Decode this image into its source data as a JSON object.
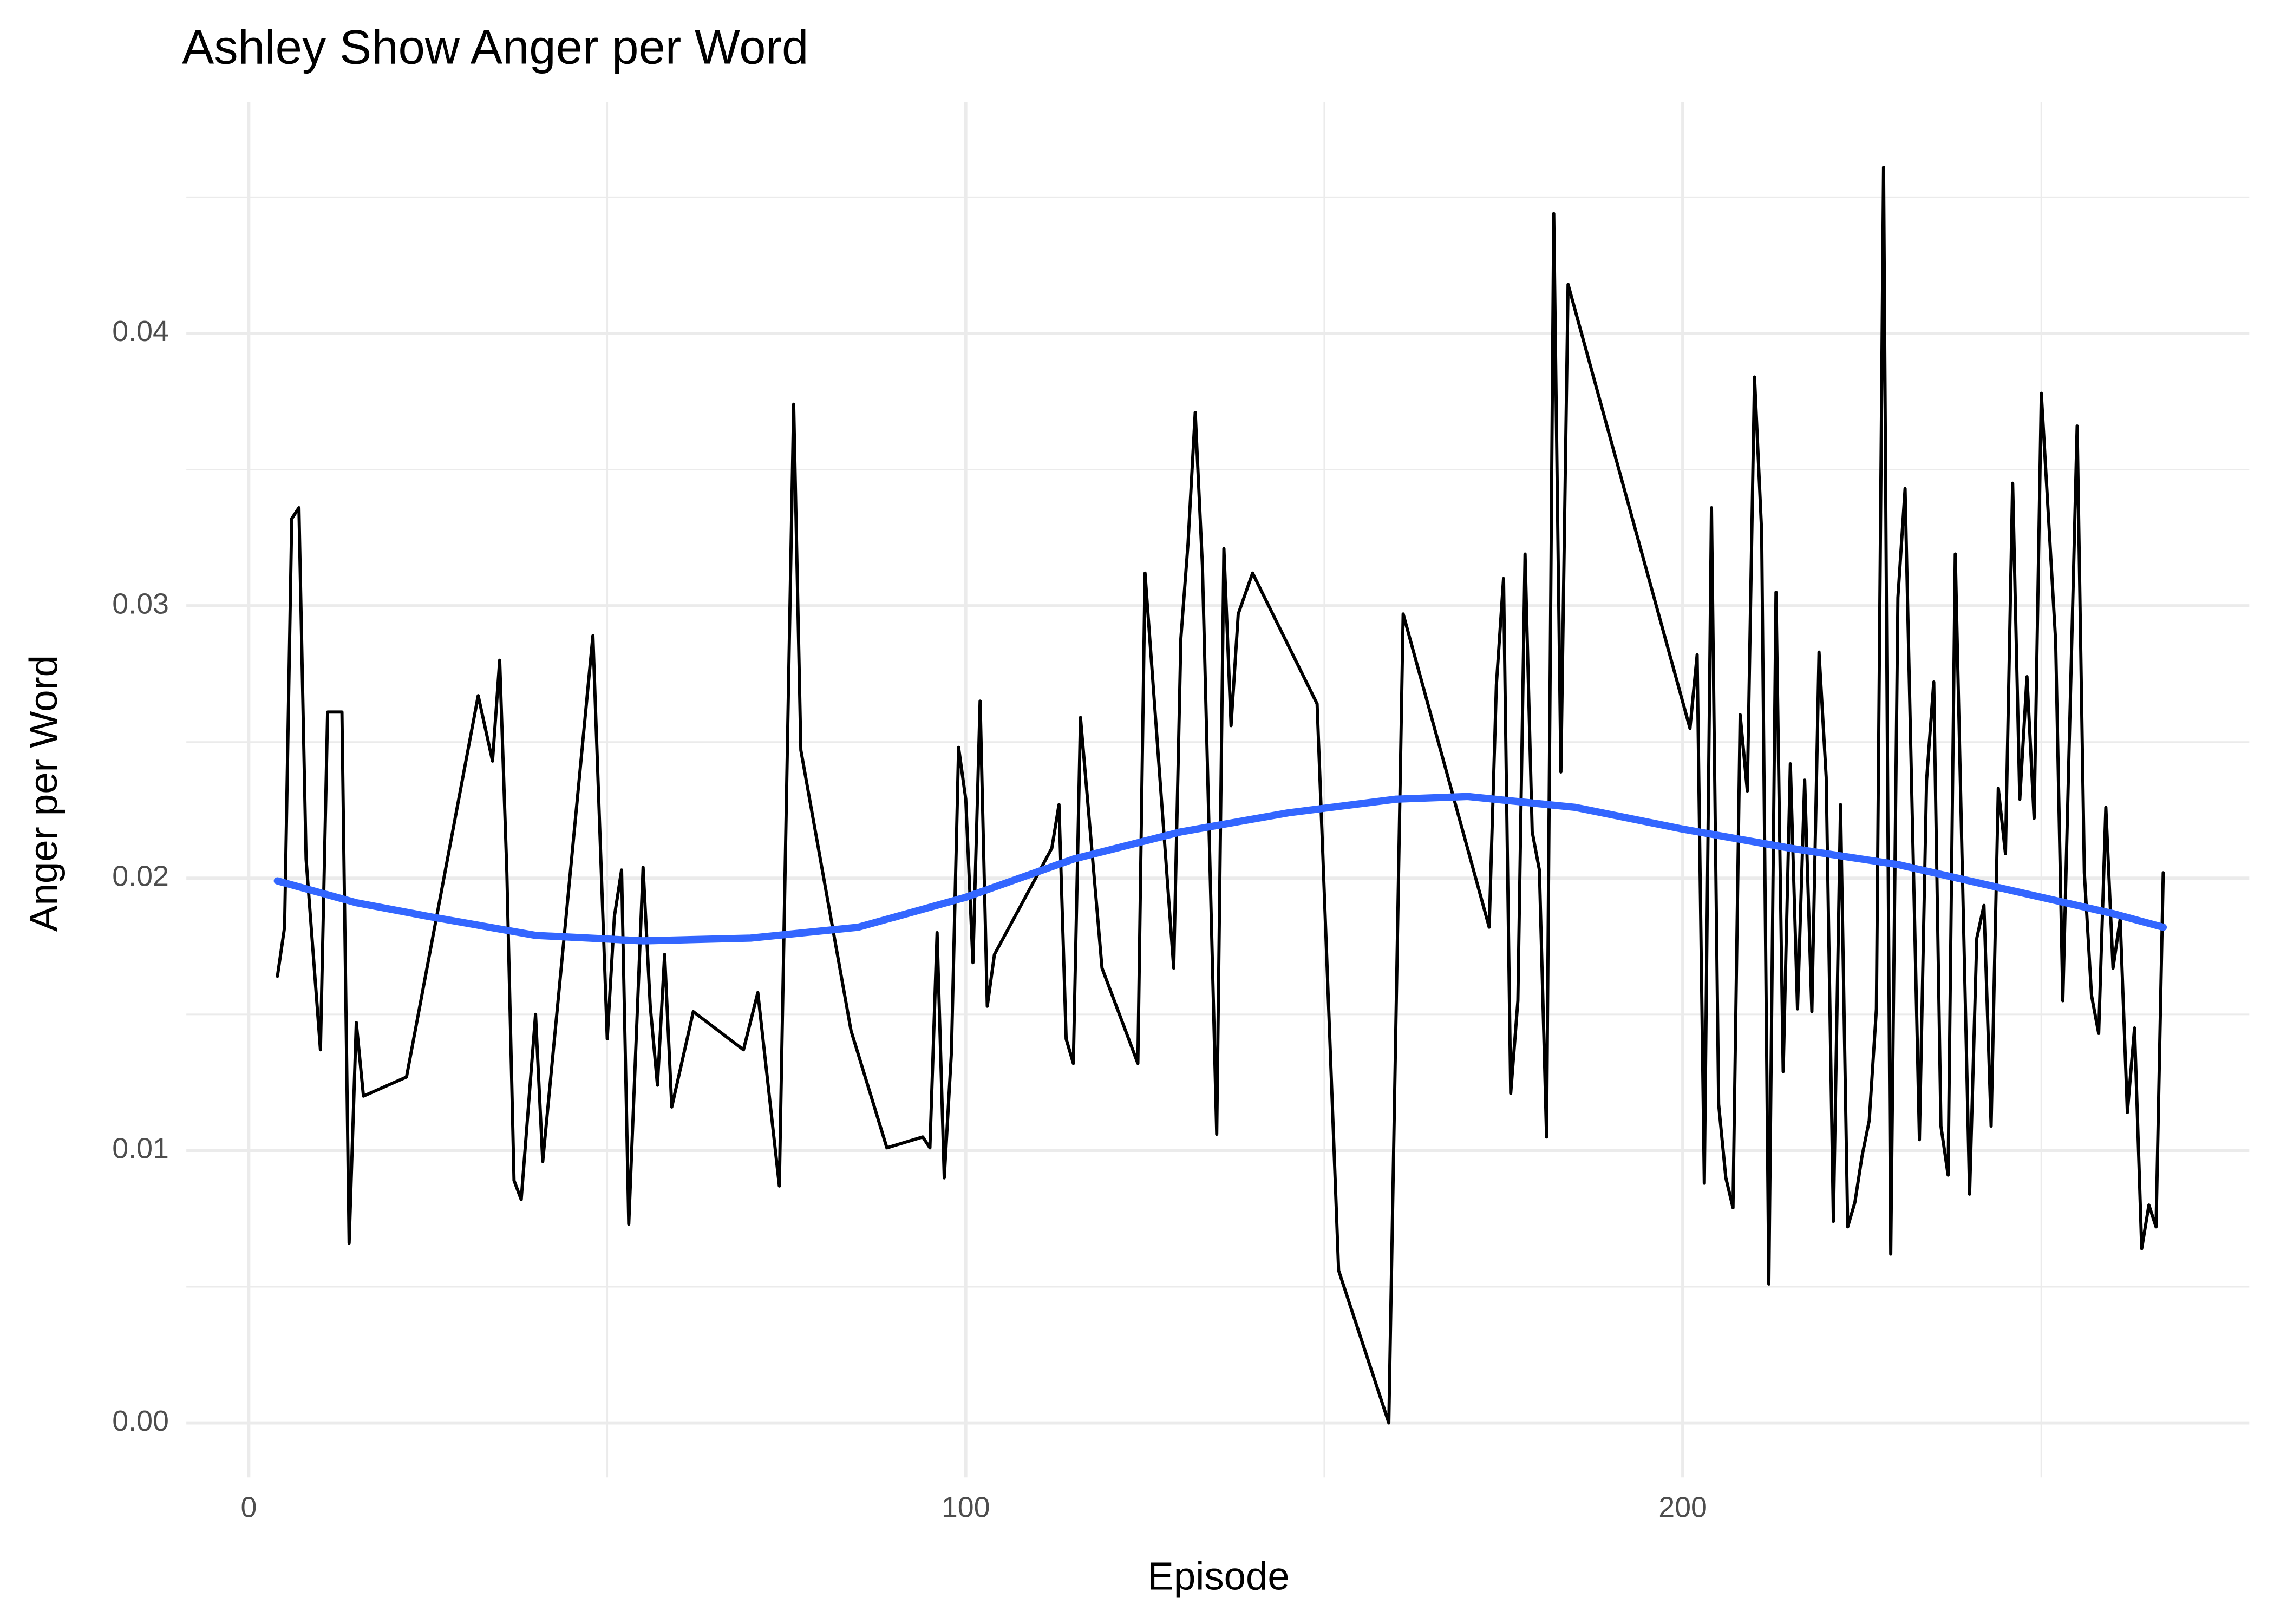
{
  "chart_data": {
    "type": "line",
    "title": "Ashley Show Anger per Word",
    "x_label": "Episode",
    "y_label": "Anger per Word",
    "xlim": [
      -8.7,
      279
    ],
    "ylim": [
      -0.002,
      0.0485
    ],
    "xticks": [
      0,
      100,
      200
    ],
    "yticks": [
      {
        "value": 0,
        "label": "0.00"
      },
      0.01,
      0.02,
      0.03,
      0.04
    ],
    "xminor": [
      50,
      150,
      250
    ],
    "yminor": [
      0.005,
      0.015,
      0.025,
      0.035,
      0.045
    ],
    "grid": true,
    "series": [
      {
        "color": "#000000",
        "line_width": 2.2,
        "x": [
          4,
          5,
          6,
          7,
          8,
          10,
          11,
          13,
          14,
          15,
          16,
          22,
          32,
          34,
          35,
          36,
          37,
          38,
          40,
          41,
          48,
          50,
          51,
          52,
          53,
          55,
          56,
          57,
          58,
          59,
          62,
          69,
          71,
          74,
          76,
          77,
          84,
          89,
          94,
          95,
          96,
          97,
          98,
          99,
          100,
          101,
          102,
          103,
          104,
          112,
          113,
          114,
          115,
          116,
          119,
          124,
          125,
          129,
          130,
          131,
          132,
          133,
          135,
          136,
          137,
          138,
          140,
          149,
          152,
          159,
          161,
          173,
          174,
          175,
          176,
          177,
          178,
          179,
          180,
          181,
          182,
          183,
          184,
          201,
          202,
          203,
          204,
          205,
          206,
          207,
          208,
          209,
          210,
          211,
          212,
          213,
          214,
          215,
          216,
          217,
          218,
          219,
          220,
          221,
          222,
          223,
          224,
          225,
          226,
          227,
          228,
          229,
          230,
          231,
          233,
          234,
          235,
          236,
          237,
          238,
          240,
          241,
          242,
          243,
          244,
          245,
          246,
          247,
          248,
          249,
          250,
          252,
          253,
          255,
          256,
          257,
          258,
          259,
          260,
          261,
          262,
          263,
          264,
          265,
          266,
          267
        ],
        "values": [
          0.0164,
          0.0182,
          0.0332,
          0.0336,
          0.0207,
          0.0137,
          0.0261,
          0.0261,
          0.0066,
          0.0147,
          0.012,
          0.0127,
          0.0267,
          0.0243,
          0.028,
          0.0202,
          0.0089,
          0.0082,
          0.015,
          0.0096,
          0.0289,
          0.0141,
          0.0186,
          0.0203,
          0.0073,
          0.0204,
          0.0153,
          0.0124,
          0.0172,
          0.0116,
          0.0151,
          0.0137,
          0.0158,
          0.0087,
          0.0374,
          0.0247,
          0.0144,
          0.0101,
          0.0105,
          0.0101,
          0.018,
          0.009,
          0.0136,
          0.0248,
          0.0229,
          0.0169,
          0.0265,
          0.0153,
          0.0172,
          0.0211,
          0.0227,
          0.0141,
          0.0132,
          0.0259,
          0.0167,
          0.0132,
          0.0312,
          0.0167,
          0.0288,
          0.0323,
          0.0371,
          0.0315,
          0.0106,
          0.0321,
          0.0256,
          0.0297,
          0.0312,
          0.0264,
          0.0056,
          0,
          0.0297,
          0.0182,
          0.0271,
          0.031,
          0.0121,
          0.0155,
          0.0319,
          0.0217,
          0.0203,
          0.0105,
          0.0444,
          0.0239,
          0.0418,
          0.0255,
          0.0282,
          0.0088,
          0.0336,
          0.0117,
          0.009,
          0.0079,
          0.026,
          0.0232,
          0.0384,
          0.0327,
          0.0051,
          0.0305,
          0.0129,
          0.0242,
          0.0152,
          0.0236,
          0.0151,
          0.0283,
          0.0237,
          0.0074,
          0.0227,
          0.0072,
          0.0081,
          0.0098,
          0.0111,
          0.0152,
          0.0461,
          0.0062,
          0.0303,
          0.0343,
          0.0104,
          0.0236,
          0.0272,
          0.0109,
          0.0091,
          0.0319,
          0.0084,
          0.0178,
          0.019,
          0.0109,
          0.0233,
          0.0209,
          0.0345,
          0.0229,
          0.0274,
          0.0222,
          0.0378,
          0.0287,
          0.0155,
          0.0366,
          0.0202,
          0.0157,
          0.0143,
          0.0226,
          0.0167,
          0.0185,
          0.0114,
          0.0145,
          0.0064,
          0.008,
          0.0072,
          0.0202
        ]
      },
      {
        "color": "#3366ff",
        "line_width": 5,
        "x": [
          4,
          15,
          25,
          40,
          55,
          70,
          85,
          100,
          115,
          130,
          145,
          160,
          170,
          185,
          200,
          215,
          230,
          245,
          260,
          267
        ],
        "values": [
          0.0199,
          0.0191,
          0.0186,
          0.0179,
          0.0177,
          0.0178,
          0.0182,
          0.0193,
          0.0207,
          0.0217,
          0.0224,
          0.0229,
          0.023,
          0.0226,
          0.0218,
          0.0211,
          0.0205,
          0.0196,
          0.0187,
          0.0182
        ]
      }
    ]
  }
}
